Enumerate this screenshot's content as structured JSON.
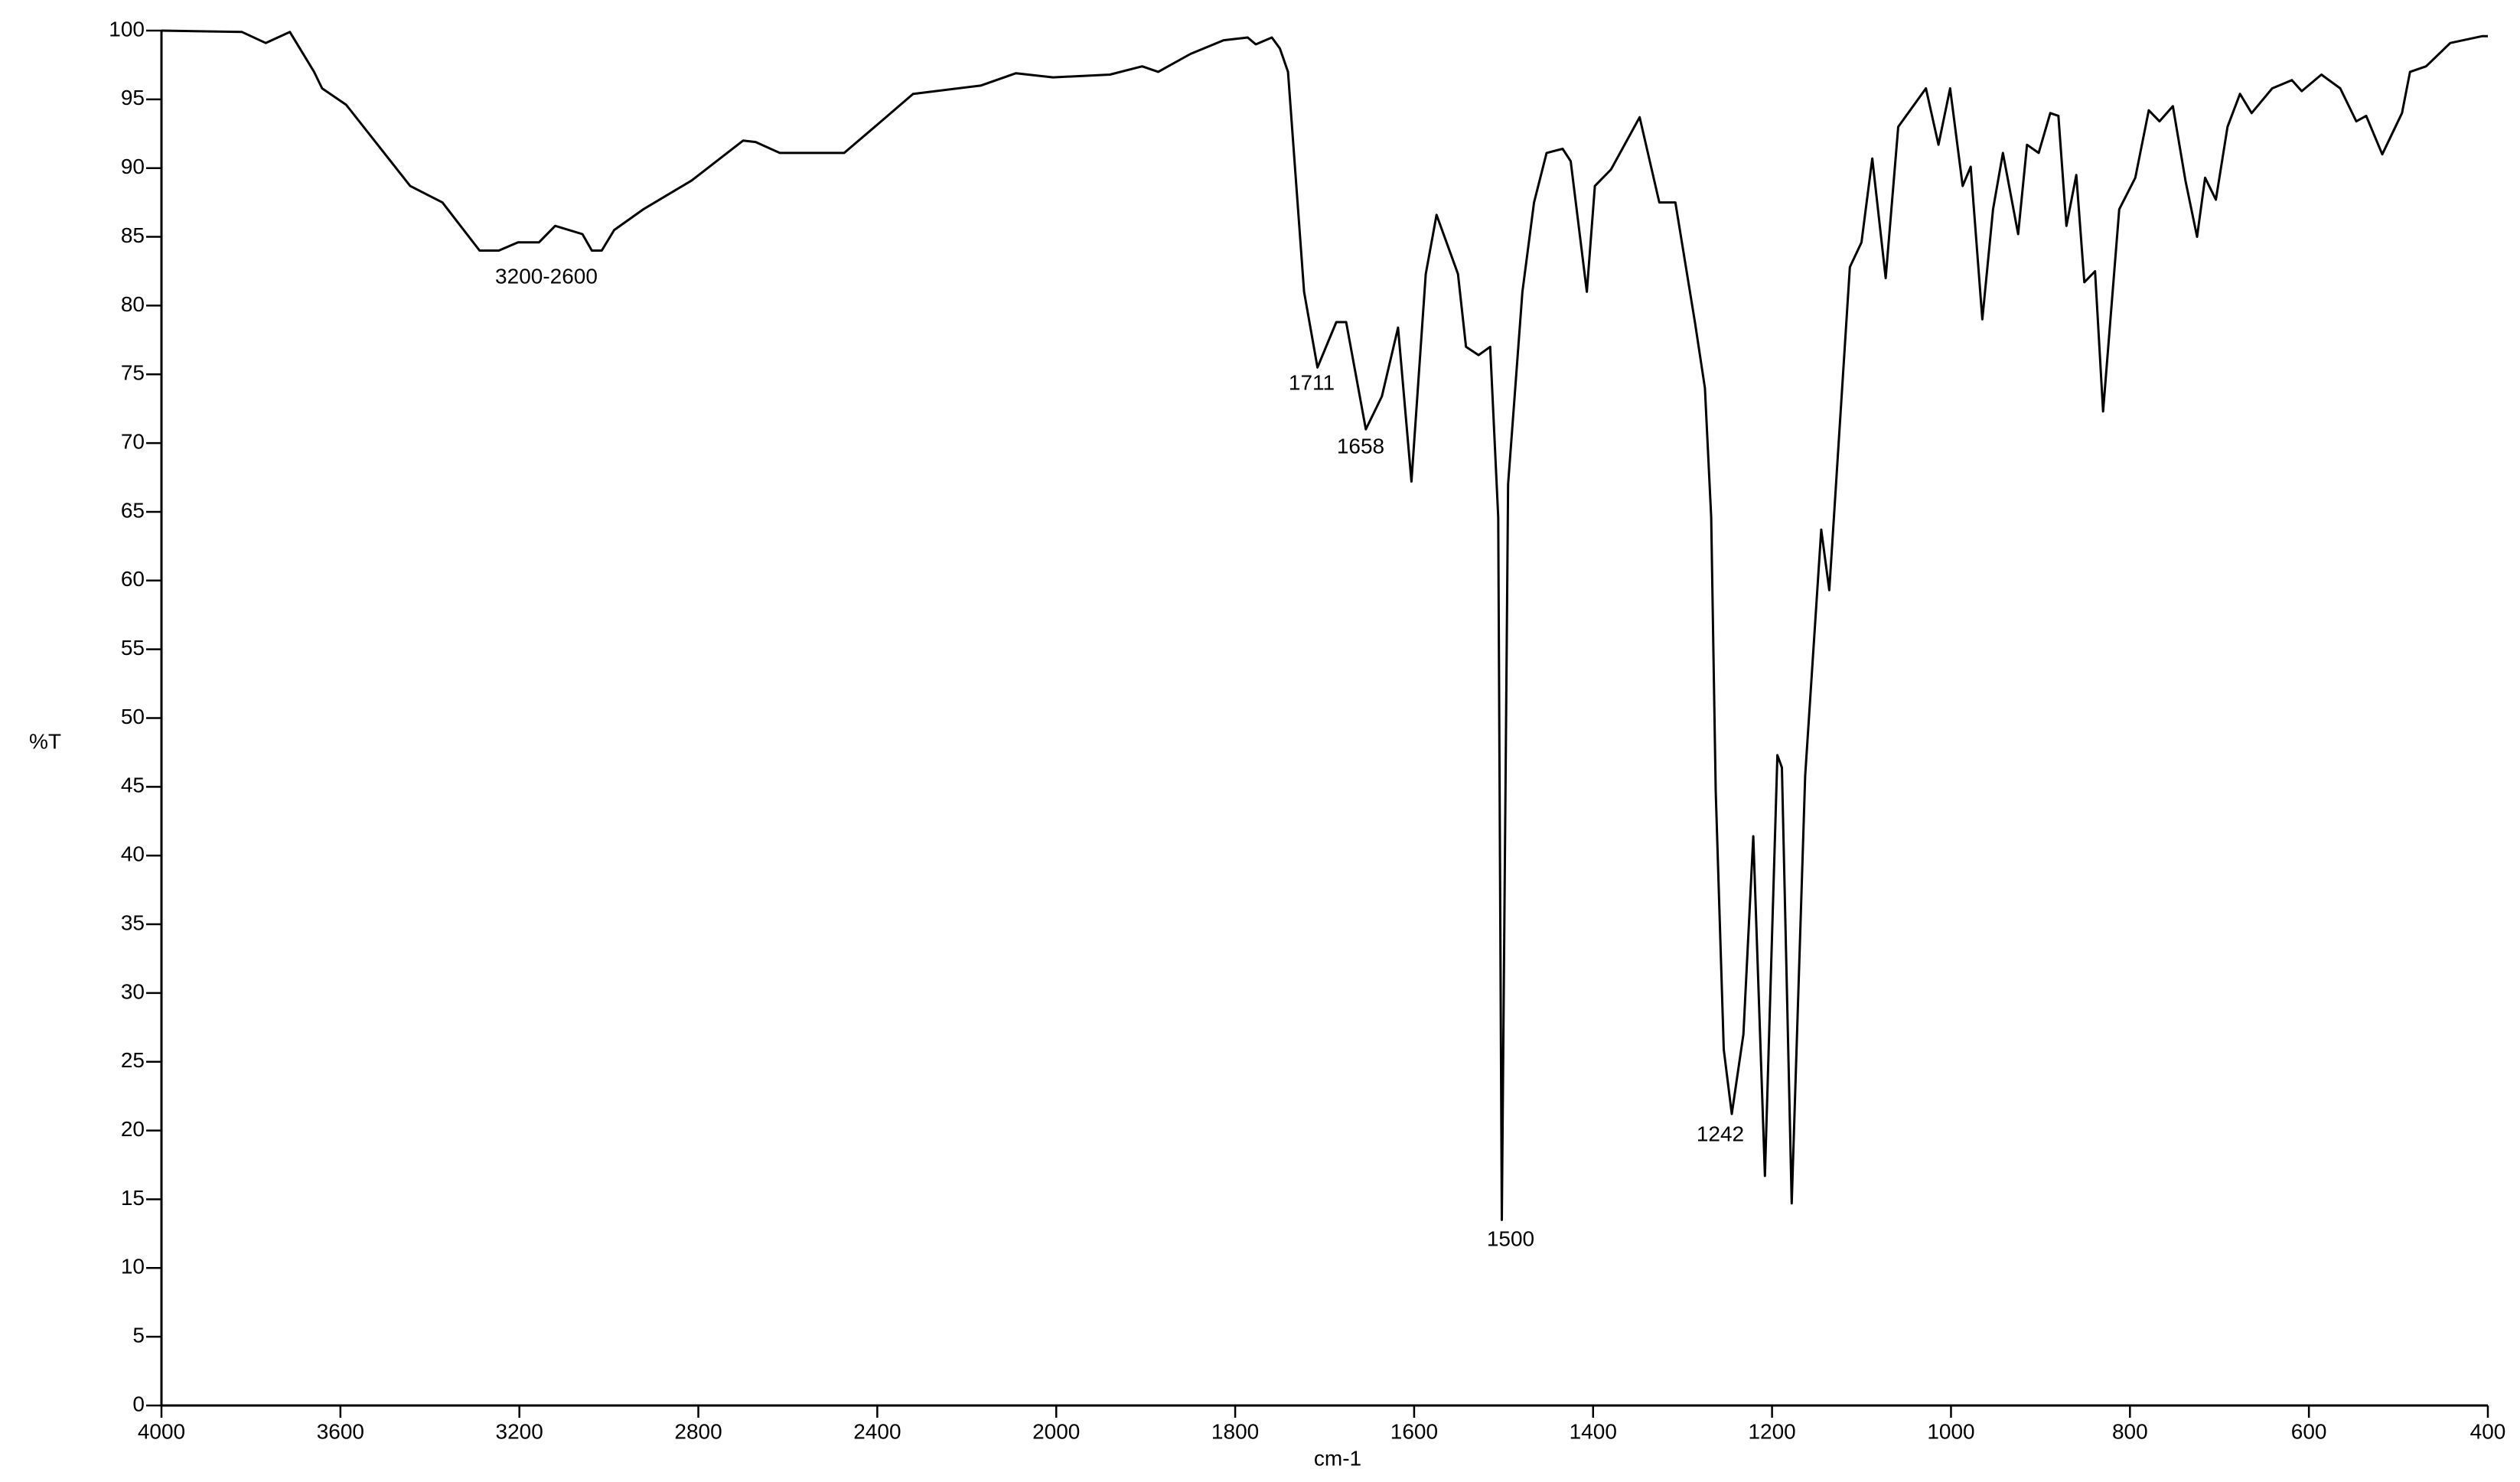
{
  "chart_data": {
    "type": "line",
    "xlabel": "cm-1",
    "ylabel": "%T",
    "xlim": [
      4000,
      400
    ],
    "ylim": [
      0,
      100
    ],
    "xscale": "segmented",
    "xticks": [
      4000,
      3600,
      3200,
      2800,
      2400,
      2000,
      1800,
      1600,
      1400,
      1200,
      1000,
      800,
      600,
      400
    ],
    "yticks": [
      0,
      5,
      10,
      15,
      20,
      25,
      30,
      35,
      40,
      45,
      50,
      55,
      60,
      65,
      70,
      75,
      80,
      85,
      90,
      95,
      100
    ],
    "annotations": [
      "3200-2600",
      "1711",
      "1658",
      "1500",
      "1242"
    ],
    "series": [
      {
        "color": "#000000",
        "x": [
          4000,
          3820,
          3767,
          3713,
          3659,
          3641,
          3587,
          3444,
          3372,
          3289,
          3246,
          3203,
          3156,
          3120,
          3059,
          3038,
          3016,
          2988,
          2923,
          2815,
          2700,
          2672,
          2618,
          2474,
          2402,
          2320,
          2169,
          2090,
          2007,
          1940,
          1904,
          1886,
          1850,
          1813,
          1786,
          1777,
          1759,
          1750,
          1741,
          1723,
          1708,
          1687,
          1676,
          1654,
          1636,
          1618,
          1603,
          1587,
          1575,
          1551,
          1542,
          1528,
          1515,
          1506,
          1502,
          1495,
          1479,
          1466,
          1452,
          1434,
          1425,
          1407,
          1398,
          1380,
          1348,
          1326,
          1308,
          1286,
          1275,
          1268,
          1263,
          1254,
          1245,
          1232,
          1221,
          1208,
          1194,
          1189,
          1178,
          1163,
          1145,
          1136,
          1113,
          1100,
          1088,
          1073,
          1059,
          1028,
          1014,
          1001,
          987,
          978,
          965,
          953,
          942,
          925,
          915,
          902,
          889,
          880,
          871,
          860,
          851,
          839,
          830,
          812,
          794,
          779,
          767,
          752,
          738,
          725,
          716,
          704,
          691,
          677,
          664,
          641,
          619,
          608,
          586,
          565,
          547,
          536,
          518,
          496,
          487,
          469,
          442,
          406,
          400
        ],
        "values": [
          100,
          99.9,
          99.1,
          99.9,
          97,
          95.8,
          94.6,
          88.7,
          87.5,
          84,
          84,
          84.6,
          84.6,
          85.8,
          85.2,
          84,
          84,
          85.5,
          87,
          89.1,
          92,
          91.9,
          91.1,
          91.1,
          93.1,
          95.4,
          96,
          96.9,
          96.6,
          96.8,
          97.4,
          97,
          98.3,
          99.3,
          99.5,
          99,
          99.5,
          98.7,
          97,
          81,
          75.5,
          78.8,
          78.8,
          71,
          73.4,
          78.4,
          67.2,
          82.3,
          86.6,
          82.3,
          77,
          76.4,
          77,
          64.6,
          13.5,
          67,
          81,
          87.5,
          91.1,
          91.4,
          90.5,
          81,
          88.7,
          89.9,
          93.7,
          87.5,
          87.5,
          78.7,
          74,
          64.6,
          44.7,
          25.9,
          21.2,
          27,
          41.4,
          16.7,
          47.3,
          46.4,
          14.7,
          45.8,
          63.7,
          59.3,
          82.8,
          84.6,
          90.7,
          82,
          93,
          95.8,
          91.7,
          95.8,
          88.7,
          90.1,
          79,
          87,
          91.1,
          85.2,
          91.7,
          91.1,
          94,
          93.8,
          85.8,
          89.5,
          81.7,
          82.5,
          72.3,
          87,
          89.3,
          94.2,
          93.4,
          94.5,
          89.1,
          85,
          89.3,
          87.7,
          93,
          95.4,
          94,
          95.8,
          96.4,
          95.6,
          96.8,
          95.8,
          93.4,
          93.8,
          91,
          94,
          97,
          97.4,
          99.1,
          99.6,
          99.6
        ]
      }
    ]
  }
}
